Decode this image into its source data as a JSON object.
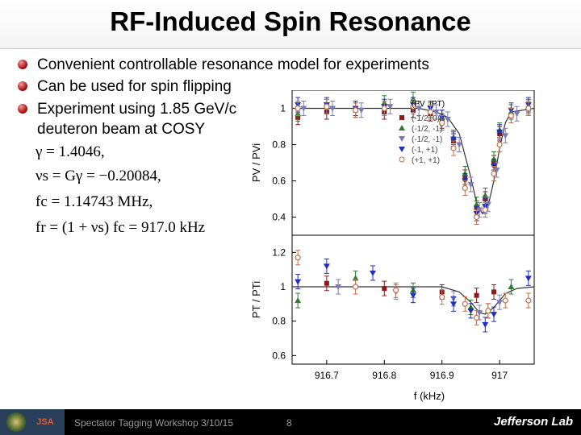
{
  "title": "RF-Induced Spin Resonance",
  "bullets": [
    "Convenient controllable resonance model for experiments",
    "Can be used for spin flipping",
    "Experiment using 1.85 GeV/c",
    "deuteron beam at COSY"
  ],
  "equations": [
    "γ = 1.4046,",
    "νs = Gγ = −0.20084,",
    "fc = 1.14743 MHz,",
    "fr = (1 + νs) fc = 917.0 kHz"
  ],
  "footer": {
    "workshop": "Spectator Tagging Workshop 3/10/15",
    "page": "8",
    "lab": "Jefferson Lab",
    "logo_text": "JSA"
  },
  "colors": {
    "bullet": "#b01515",
    "series": [
      "#8b1a1a",
      "#2e7d32",
      "#7a7ab8",
      "#1f2fbf",
      "#c0704a"
    ]
  },
  "chart_data": [
    {
      "type": "scatter",
      "panel": "top",
      "ylabel": "PV / PVi",
      "ylim": [
        0.3,
        1.1
      ],
      "yticks": [
        0.4,
        0.6,
        0.8,
        1
      ],
      "xlim": [
        916.64,
        917.06
      ],
      "legend_title": "(PV , PT)",
      "series": [
        {
          "name": "(-1/2, 0)",
          "marker": "square",
          "x": [
            916.65,
            916.7,
            916.75,
            916.8,
            916.85,
            916.88,
            916.9,
            916.92,
            916.94,
            916.96,
            916.975,
            916.99,
            917.0,
            917.02,
            917.05
          ],
          "y": [
            0.95,
            0.98,
            0.99,
            0.98,
            0.99,
            0.97,
            0.93,
            0.82,
            0.62,
            0.45,
            0.5,
            0.7,
            0.86,
            0.96,
            1.0
          ]
        },
        {
          "name": "(-1/2, -1)",
          "marker": "triangle",
          "x": [
            916.65,
            916.7,
            916.75,
            916.8,
            916.85,
            916.88,
            916.9,
            916.92,
            916.94,
            916.96,
            916.975,
            916.99,
            917.0,
            917.02,
            917.05
          ],
          "y": [
            0.97,
            1.01,
            1.0,
            1.03,
            1.05,
            0.99,
            0.95,
            0.84,
            0.64,
            0.47,
            0.52,
            0.72,
            0.88,
            0.98,
            1.01
          ]
        },
        {
          "name": "(-1/2, -1)",
          "marker": "triangle-down-light",
          "x": [
            916.66,
            916.71,
            916.76,
            916.81,
            916.86,
            916.89,
            916.91,
            916.93,
            916.95,
            916.965,
            916.98,
            916.995,
            917.01,
            917.03
          ],
          "y": [
            1.0,
            1.0,
            0.99,
            1.01,
            1.0,
            0.98,
            0.94,
            0.8,
            0.58,
            0.44,
            0.47,
            0.66,
            0.85,
            0.97
          ]
        },
        {
          "name": "(-1, +1)",
          "marker": "triangle-down",
          "x": [
            916.65,
            916.7,
            916.75,
            916.8,
            916.85,
            916.88,
            916.9,
            916.92,
            916.94,
            916.96,
            916.975,
            916.99,
            917.0,
            917.02,
            917.05
          ],
          "y": [
            1.02,
            1.02,
            1.0,
            1.01,
            1.02,
            1.0,
            0.95,
            0.83,
            0.6,
            0.42,
            0.46,
            0.68,
            0.87,
            0.99,
            1.02
          ]
        },
        {
          "name": "(+1, +1)",
          "marker": "circle",
          "x": [
            916.65,
            916.7,
            916.75,
            916.8,
            916.85,
            916.88,
            916.9,
            916.92,
            916.94,
            916.96,
            916.975,
            916.99,
            917.0,
            917.02,
            917.05
          ],
          "y": [
            1.0,
            1.01,
            0.99,
            1.0,
            1.01,
            0.98,
            0.92,
            0.78,
            0.56,
            0.4,
            0.44,
            0.64,
            0.8,
            0.96,
            1.0
          ]
        }
      ],
      "fit": {
        "x": [
          916.64,
          916.86,
          916.89,
          916.91,
          916.93,
          916.95,
          916.96,
          916.97,
          916.98,
          916.99,
          917.0,
          917.01,
          917.02,
          917.06
        ],
        "y": [
          1.0,
          1.0,
          0.98,
          0.95,
          0.86,
          0.62,
          0.48,
          0.42,
          0.46,
          0.6,
          0.78,
          0.92,
          0.98,
          1.0
        ]
      }
    },
    {
      "type": "scatter",
      "panel": "bottom",
      "ylabel": "PT / PTi",
      "xlabel": "f (kHz)",
      "ylim": [
        0.55,
        1.3
      ],
      "yticks": [
        0.6,
        0.8,
        1,
        1.2
      ],
      "xlim": [
        916.64,
        917.06
      ],
      "xticks": [
        916.7,
        916.8,
        916.9,
        917
      ],
      "xtick_labels": [
        "916.7",
        "916.8",
        "916.9",
        "917"
      ],
      "series": [
        {
          "name": "(-1/2, 0)",
          "marker": "square",
          "x": [
            916.7,
            916.8,
            916.9,
            916.96,
            916.99
          ],
          "y": [
            1.02,
            0.99,
            0.97,
            0.95,
            0.97
          ]
        },
        {
          "name": "(-1/2, -1)",
          "marker": "triangle",
          "x": [
            916.65,
            916.75,
            916.85,
            916.95,
            916.98,
            917.02
          ],
          "y": [
            0.92,
            1.05,
            0.98,
            0.88,
            0.86,
            1.0
          ]
        },
        {
          "name": "(-1/2, -1)",
          "marker": "triangle-down-light",
          "x": [
            916.72,
            916.82,
            916.92,
            916.965,
            917.0
          ],
          "y": [
            1.0,
            0.97,
            0.93,
            0.85,
            0.91
          ]
        },
        {
          "name": "(-1, +1)",
          "marker": "triangle-down",
          "x": [
            916.65,
            916.7,
            916.78,
            916.85,
            916.92,
            916.95,
            916.975,
            916.99,
            917.05
          ],
          "y": [
            1.03,
            1.12,
            1.08,
            0.95,
            0.9,
            0.86,
            0.78,
            0.84,
            1.05
          ]
        },
        {
          "name": "(+1, +1)",
          "marker": "circle",
          "x": [
            916.65,
            916.75,
            916.82,
            916.9,
            916.94,
            916.96,
            916.98,
            917.01,
            917.05
          ],
          "y": [
            1.17,
            1.0,
            0.98,
            0.94,
            0.9,
            0.82,
            0.86,
            0.92,
            0.92
          ]
        }
      ],
      "fit": {
        "x": [
          916.64,
          916.9,
          916.93,
          916.95,
          916.965,
          916.975,
          916.99,
          917.01,
          917.03,
          917.06
        ],
        "y": [
          1.0,
          1.0,
          0.97,
          0.91,
          0.85,
          0.84,
          0.88,
          0.96,
          0.99,
          1.0
        ]
      }
    }
  ]
}
